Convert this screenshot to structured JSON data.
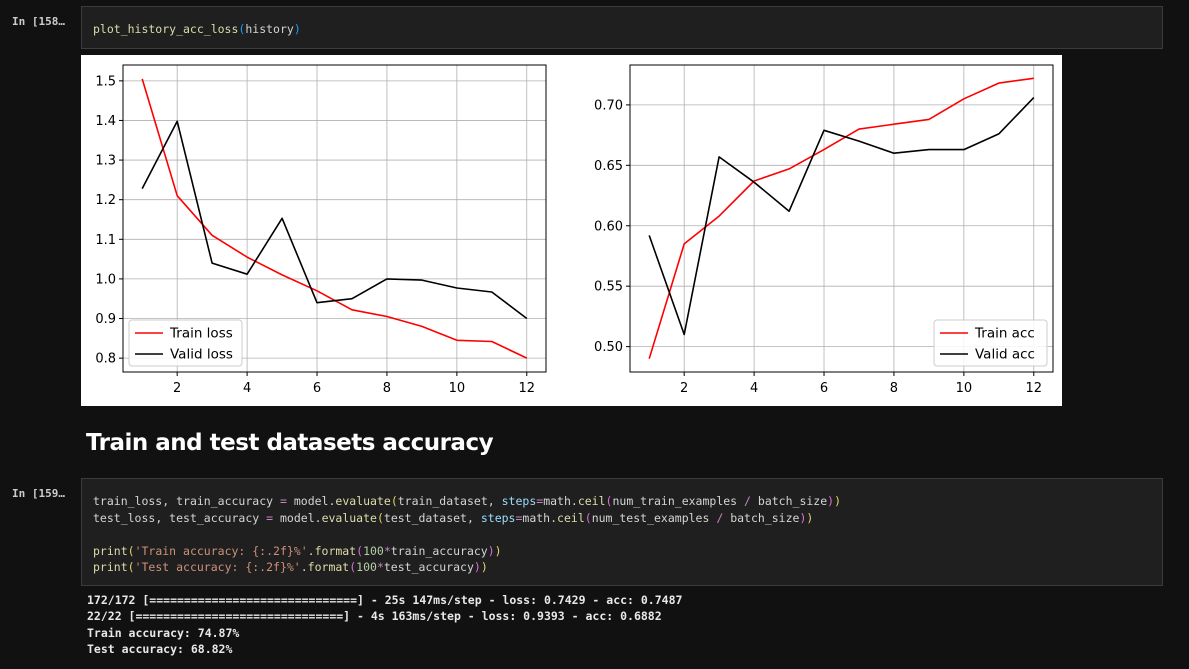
{
  "cells": [
    {
      "prompt": "In [158…",
      "code": "plot_history_acc_loss(history)"
    },
    {
      "prompt": "In [159…",
      "code_lines": [
        "train_loss, train_accuracy = model.evaluate(train_dataset, steps=math.ceil(num_train_examples / batch_size))",
        "test_loss, test_accuracy = model.evaluate(test_dataset, steps=math.ceil(num_test_examples / batch_size))",
        "",
        "print('Train accuracy: {:.2f}%'.format(100*train_accuracy))",
        "print('Test accuracy: {:.2f}%'.format(100*test_accuracy))"
      ]
    }
  ],
  "markdown_heading": "Train and test datasets accuracy",
  "output_lines": [
    "172/172 [==============================] - 25s 147ms/step - loss: 0.7429 - acc: 0.7487",
    "22/22 [==============================] - 4s 163ms/step - loss: 0.9393 - acc: 0.6882",
    "Train accuracy: 74.87%",
    "Test accuracy: 68.82%"
  ],
  "chart_data": [
    {
      "type": "line",
      "x": [
        1,
        2,
        3,
        4,
        5,
        6,
        7,
        8,
        9,
        10,
        11,
        12
      ],
      "xticks": [
        2,
        4,
        6,
        8,
        10,
        12
      ],
      "yticks": [
        0.8,
        0.9,
        1.0,
        1.1,
        1.2,
        1.3,
        1.4,
        1.5
      ],
      "ytick_labels": [
        "0.8",
        "0.9",
        "1.0",
        "1.1",
        "1.2",
        "1.3",
        "1.4",
        "1.5"
      ],
      "xlim": [
        0.45,
        12.55
      ],
      "ylim": [
        0.765,
        1.54
      ],
      "grid": true,
      "legend_position": "lower-left",
      "series": [
        {
          "name": "Train loss",
          "color": "#ff0000",
          "values": [
            1.505,
            1.21,
            1.11,
            1.055,
            1.01,
            0.97,
            0.922,
            0.905,
            0.88,
            0.845,
            0.842,
            0.8
          ]
        },
        {
          "name": "Valid loss",
          "color": "#000000",
          "values": [
            1.228,
            1.398,
            1.04,
            1.012,
            1.153,
            0.94,
            0.95,
            1.0,
            0.997,
            0.977,
            0.967,
            0.9
          ]
        }
      ]
    },
    {
      "type": "line",
      "x": [
        1,
        2,
        3,
        4,
        5,
        6,
        7,
        8,
        9,
        10,
        11,
        12
      ],
      "xticks": [
        2,
        4,
        6,
        8,
        10,
        12
      ],
      "yticks": [
        0.5,
        0.55,
        0.6,
        0.65,
        0.7
      ],
      "ytick_labels": [
        "0.50",
        "0.55",
        "0.60",
        "0.65",
        "0.70"
      ],
      "xlim": [
        0.45,
        12.55
      ],
      "ylim": [
        0.479,
        0.733
      ],
      "grid": true,
      "legend_position": "lower-right",
      "series": [
        {
          "name": "Train acc",
          "color": "#ff0000",
          "values": [
            0.49,
            0.585,
            0.608,
            0.637,
            0.647,
            0.663,
            0.68,
            0.684,
            0.688,
            0.705,
            0.718,
            0.722
          ]
        },
        {
          "name": "Valid acc",
          "color": "#000000",
          "values": [
            0.592,
            0.51,
            0.657,
            0.636,
            0.612,
            0.679,
            0.67,
            0.66,
            0.663,
            0.663,
            0.676,
            0.706
          ]
        }
      ]
    }
  ]
}
